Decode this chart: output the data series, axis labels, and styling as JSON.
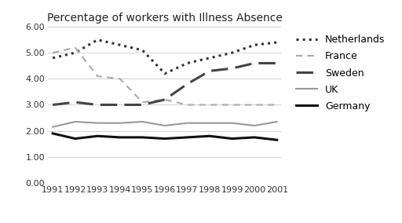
{
  "title": "Percentage of workers with Illness Absence",
  "years": [
    1991,
    1992,
    1993,
    1994,
    1995,
    1996,
    1997,
    1998,
    1999,
    2000,
    2001
  ],
  "series": {
    "Netherlands": [
      4.8,
      5.0,
      5.5,
      5.3,
      5.1,
      4.2,
      4.6,
      4.8,
      5.0,
      5.3,
      5.4
    ],
    "France": [
      5.0,
      5.2,
      4.1,
      4.0,
      3.1,
      3.2,
      3.0,
      3.0,
      3.0,
      3.0,
      3.0
    ],
    "Sweden": [
      3.0,
      3.1,
      3.0,
      3.0,
      3.0,
      3.2,
      3.8,
      4.3,
      4.4,
      4.6,
      4.6
    ],
    "UK": [
      2.15,
      2.35,
      2.3,
      2.3,
      2.35,
      2.2,
      2.3,
      2.3,
      2.3,
      2.2,
      2.35
    ],
    "Germany": [
      1.9,
      1.7,
      1.8,
      1.75,
      1.75,
      1.7,
      1.75,
      1.8,
      1.7,
      1.75,
      1.65
    ]
  },
  "styles": {
    "Netherlands": {
      "color": "#333333",
      "linestyle": "dotted",
      "linewidth": 2.2,
      "dashes": null
    },
    "France": {
      "color": "#aaaaaa",
      "linestyle": "dashed",
      "linewidth": 1.5,
      "dashes": [
        4,
        3
      ]
    },
    "Sweden": {
      "color": "#444444",
      "linestyle": "dashed",
      "linewidth": 2.2,
      "dashes": [
        7,
        3
      ]
    },
    "UK": {
      "color": "#999999",
      "linestyle": "solid",
      "linewidth": 1.5,
      "dashes": null
    },
    "Germany": {
      "color": "#111111",
      "linestyle": "solid",
      "linewidth": 2.2,
      "dashes": null
    }
  },
  "ylim": [
    0.0,
    6.0
  ],
  "yticks": [
    0.0,
    1.0,
    2.0,
    3.0,
    4.0,
    5.0,
    6.0
  ],
  "ytick_labels": [
    "0.00",
    "1.00",
    "2.00",
    "3.00",
    "4.00",
    "5.00",
    "6.00"
  ],
  "legend_order": [
    "Netherlands",
    "France",
    "Sweden",
    "UK",
    "Germany"
  ],
  "background_color": "#ffffff",
  "title_fontsize": 10,
  "tick_fontsize": 8,
  "legend_fontsize": 9
}
